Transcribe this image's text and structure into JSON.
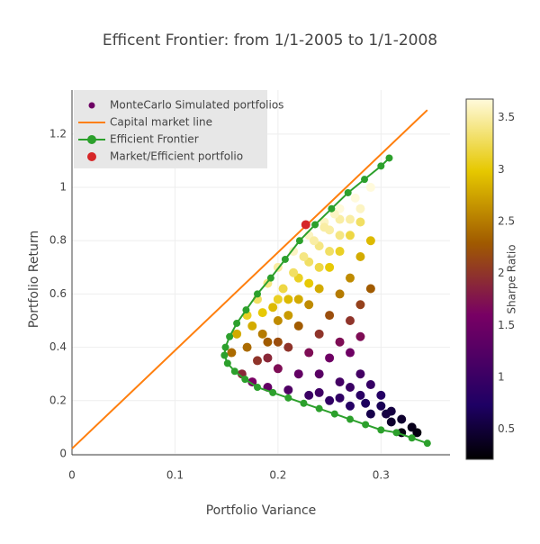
{
  "chart_data": {
    "type": "scatter",
    "title": "Efficent Frontier: from 1/1-2005 to 1/1-2008",
    "x_label": "Portfolio Variance",
    "y_label": "Portfolio Return",
    "xlim": [
      0,
      0.367
    ],
    "ylim": [
      0,
      1.365
    ],
    "xticks": [
      0,
      0.1,
      0.2,
      0.3
    ],
    "yticks": [
      0,
      0.2,
      0.4,
      0.6,
      0.8,
      1,
      1.2
    ],
    "grid": true,
    "legend_position": "top-left",
    "colorbar": {
      "title": "Sharpe Ratio",
      "lim": [
        0.21,
        3.68
      ],
      "ticks": [
        0.5,
        1,
        1.5,
        2,
        2.5,
        3,
        3.5
      ],
      "colorscale": [
        [
          0,
          "#000000"
        ],
        [
          0.15,
          "#1e0064"
        ],
        [
          0.4,
          "#780064"
        ],
        [
          0.6,
          "#a05a00"
        ],
        [
          0.8,
          "#e6c800"
        ],
        [
          1,
          "#fffadc"
        ]
      ]
    },
    "series": [
      {
        "name": "MonteCarlo Simulated portfolios",
        "mode": "markers",
        "x": [
          0.155,
          0.16,
          0.17,
          0.18,
          0.19,
          0.2,
          0.215,
          0.23,
          0.245,
          0.26,
          0.275,
          0.29,
          0.165,
          0.175,
          0.19,
          0.21,
          0.23,
          0.25,
          0.27,
          0.29,
          0.31,
          0.33,
          0.32,
          0.18,
          0.19,
          0.2,
          0.21,
          0.22,
          0.23,
          0.24,
          0.25,
          0.26,
          0.2,
          0.21,
          0.22,
          0.23,
          0.24,
          0.25,
          0.26,
          0.27,
          0.28,
          0.22,
          0.23,
          0.24,
          0.25,
          0.26,
          0.27,
          0.28,
          0.29,
          0.24,
          0.25,
          0.26,
          0.27,
          0.28,
          0.29,
          0.27,
          0.28,
          0.26,
          0.28,
          0.29,
          0.3,
          0.28,
          0.26,
          0.24,
          0.27,
          0.32,
          0.3,
          0.31,
          0.335,
          0.305,
          0.285,
          0.185,
          0.195,
          0.205,
          0.215,
          0.225,
          0.235,
          0.245,
          0.255,
          0.17,
          0.175,
          0.185,
          0.2,
          0.21,
          0.19,
          0.2,
          0.22,
          0.23,
          0.24,
          0.25,
          0.26,
          0.27,
          0.28
        ],
        "y": [
          0.38,
          0.45,
          0.52,
          0.58,
          0.64,
          0.7,
          0.76,
          0.82,
          0.87,
          0.92,
          0.96,
          1.0,
          0.3,
          0.27,
          0.25,
          0.24,
          0.22,
          0.2,
          0.18,
          0.15,
          0.12,
          0.1,
          0.08,
          0.35,
          0.42,
          0.5,
          0.58,
          0.66,
          0.72,
          0.78,
          0.84,
          0.88,
          0.32,
          0.4,
          0.48,
          0.56,
          0.62,
          0.7,
          0.76,
          0.82,
          0.87,
          0.3,
          0.38,
          0.45,
          0.52,
          0.6,
          0.66,
          0.74,
          0.8,
          0.3,
          0.36,
          0.42,
          0.5,
          0.56,
          0.62,
          0.38,
          0.44,
          0.27,
          0.3,
          0.26,
          0.22,
          0.22,
          0.21,
          0.23,
          0.25,
          0.13,
          0.18,
          0.16,
          0.08,
          0.15,
          0.19,
          0.45,
          0.55,
          0.62,
          0.68,
          0.74,
          0.8,
          0.85,
          0.9,
          0.4,
          0.48,
          0.53,
          0.58,
          0.52,
          0.36,
          0.42,
          0.58,
          0.64,
          0.7,
          0.76,
          0.82,
          0.88,
          0.92
        ],
        "color_values": [
          2.4,
          2.8,
          3.1,
          3.3,
          3.4,
          3.5,
          3.6,
          3.6,
          3.6,
          3.7,
          3.7,
          3.7,
          1.9,
          1.6,
          1.4,
          1.2,
          1.0,
          0.9,
          0.8,
          0.6,
          0.45,
          0.35,
          0.3,
          2.0,
          2.3,
          2.6,
          2.9,
          3.1,
          3.3,
          3.4,
          3.5,
          3.5,
          1.7,
          2.0,
          2.3,
          2.6,
          2.8,
          3.0,
          3.1,
          3.2,
          3.3,
          1.4,
          1.7,
          2.0,
          2.2,
          2.5,
          2.6,
          2.8,
          2.9,
          1.3,
          1.5,
          1.7,
          2.0,
          2.1,
          2.3,
          1.5,
          1.7,
          1.1,
          1.1,
          0.95,
          0.8,
          0.85,
          0.9,
          1.05,
          1.0,
          0.45,
          0.65,
          0.55,
          0.3,
          0.55,
          0.7,
          2.5,
          2.9,
          3.2,
          3.3,
          3.4,
          3.5,
          3.5,
          3.6,
          2.4,
          2.8,
          3.0,
          3.1,
          2.7,
          1.9,
          2.2,
          2.8,
          3.0,
          3.2,
          3.3,
          3.4,
          3.5,
          3.6
        ]
      },
      {
        "name": "Capital market line",
        "mode": "lines",
        "color": "#ff7f0e",
        "x": [
          0,
          0.345
        ],
        "y": [
          0.02,
          1.29
        ]
      },
      {
        "name": "Efficient Frontier",
        "mode": "lines+markers",
        "color": "#2ca02c",
        "x": [
          0.345,
          0.33,
          0.315,
          0.3,
          0.285,
          0.27,
          0.255,
          0.24,
          0.225,
          0.21,
          0.195,
          0.18,
          0.168,
          0.158,
          0.151,
          0.148,
          0.149,
          0.153,
          0.16,
          0.169,
          0.18,
          0.193,
          0.207,
          0.221,
          0.236,
          0.252,
          0.268,
          0.284,
          0.3,
          0.308
        ],
        "y": [
          0.04,
          0.06,
          0.08,
          0.09,
          0.11,
          0.13,
          0.15,
          0.17,
          0.19,
          0.21,
          0.23,
          0.25,
          0.28,
          0.31,
          0.34,
          0.37,
          0.4,
          0.44,
          0.49,
          0.54,
          0.6,
          0.66,
          0.73,
          0.8,
          0.86,
          0.92,
          0.98,
          1.03,
          1.08,
          1.11
        ]
      },
      {
        "name": "Market/Efficient portfolio",
        "mode": "markers",
        "color": "#d62728",
        "x": [
          0.227
        ],
        "y": [
          0.86
        ]
      }
    ]
  }
}
